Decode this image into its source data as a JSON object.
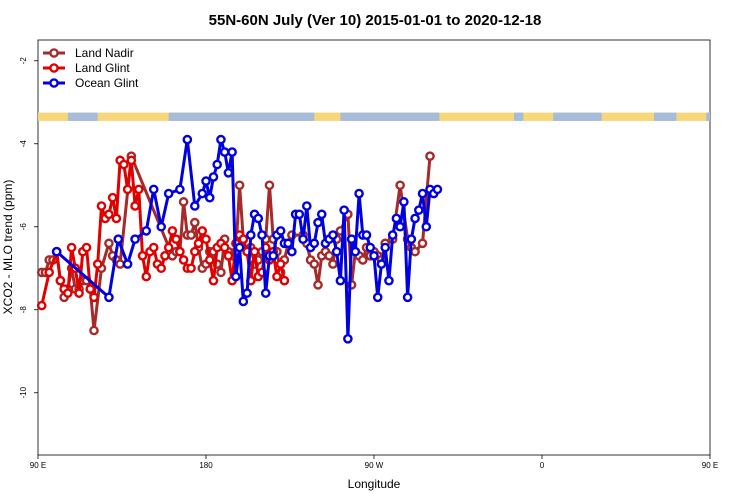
{
  "chart_data": {
    "type": "line",
    "title": "55N-60N July (Ver 10)   2015-01-01 to 2020-12-18",
    "xlabel": "Longitude",
    "ylabel": "XCO2 - MLO trend (ppm)",
    "xlim": [
      90,
      450
    ],
    "ylim": [
      -11.5,
      -1.5
    ],
    "x_ticks": [
      {
        "value": 90,
        "label": "90 E"
      },
      {
        "value": 180,
        "label": "180"
      },
      {
        "value": 270,
        "label": "90 W"
      },
      {
        "value": 360,
        "label": "0"
      },
      {
        "value": 450,
        "label": "90 E"
      },
      {
        "value": 540,
        "label": "180"
      }
    ],
    "y_ticks": [
      {
        "value": -2,
        "label": "-2"
      },
      {
        "value": -4,
        "label": "-4"
      },
      {
        "value": -6,
        "label": "-6"
      },
      {
        "value": -8,
        "label": "-8"
      },
      {
        "value": -10,
        "label": "-10"
      }
    ],
    "legend_position": "top-left",
    "land_mask_band": {
      "y_top": -3.25,
      "y_bottom": -3.45,
      "land_color": "#f7d77a",
      "ocean_color": "#a7bcd8"
    },
    "series": [
      {
        "name": "Land Nadir",
        "color": "#a52a2a",
        "x": [
          92,
          94,
          96,
          98,
          100,
          102,
          104,
          106,
          108,
          110,
          112,
          114,
          116,
          118,
          120,
          124,
          128,
          130,
          132,
          134,
          140,
          162,
          164,
          166,
          168,
          170,
          172,
          174,
          176,
          178,
          180,
          182,
          184,
          186,
          188,
          190,
          192,
          194,
          196,
          198,
          200,
          202,
          204,
          206,
          208,
          210,
          212,
          214,
          216,
          218,
          220,
          222,
          224,
          226,
          232,
          234,
          236,
          238,
          240,
          242,
          244,
          246,
          248,
          250,
          252,
          256,
          258,
          260,
          262,
          264,
          266,
          268,
          270,
          272,
          274,
          276,
          280,
          284,
          288,
          290,
          292,
          296,
          300
        ],
        "y": [
          -7.1,
          -7.1,
          -6.8,
          -6.8,
          -6.6,
          -7.3,
          -7.7,
          -7.5,
          -7.0,
          -7.5,
          -7.5,
          -7.3,
          -7.3,
          -7.5,
          -8.5,
          -7.0,
          -6.4,
          -6.7,
          -6.8,
          -6.9,
          -4.3,
          -6.7,
          -6.6,
          -6.6,
          -5.4,
          -6.2,
          -6.2,
          -5.9,
          -6.5,
          -7.0,
          -6.9,
          -6.6,
          -6.6,
          -6.9,
          -7.1,
          -6.3,
          -6.6,
          -6.7,
          -6.6,
          -5.0,
          -6.3,
          -6.6,
          -6.5,
          -6.9,
          -6.8,
          -6.6,
          -6.3,
          -5.0,
          -6.3,
          -6.6,
          -7.1,
          -6.8,
          -6.4,
          -6.2,
          -6.2,
          -6.4,
          -6.8,
          -6.9,
          -7.4,
          -6.7,
          -6.6,
          -6.7,
          -6.9,
          -6.3,
          -6.1,
          -5.7,
          -7.4,
          -6.6,
          -6.7,
          -6.8,
          -6.5,
          -6.7,
          -6.6,
          -6.7,
          -6.8,
          -6.4,
          -6.3,
          -5.0,
          -6.3,
          -6.5,
          -6.6,
          -6.4,
          -4.3
        ]
      },
      {
        "name": "Land Glint",
        "color": "#e00000",
        "x": [
          92,
          96,
          100,
          102,
          104,
          106,
          108,
          110,
          112,
          114,
          116,
          118,
          120,
          122,
          124,
          126,
          128,
          130,
          132,
          134,
          136,
          138,
          140,
          142,
          144,
          146,
          148,
          150,
          152,
          154,
          156,
          158,
          160,
          162,
          164,
          166,
          168,
          170,
          172,
          174,
          176,
          178,
          180,
          182,
          184,
          186,
          188,
          190,
          192,
          194,
          196,
          198,
          200,
          202,
          204,
          206,
          208,
          210,
          212,
          214,
          216,
          218,
          220,
          222
        ],
        "y": [
          -7.9,
          -7.1,
          -6.6,
          -7.3,
          -7.5,
          -7.6,
          -6.5,
          -7.0,
          -7.6,
          -6.6,
          -6.5,
          -7.5,
          -7.7,
          -6.9,
          -5.5,
          -5.8,
          -5.7,
          -5.3,
          -5.8,
          -4.4,
          -4.5,
          -5.1,
          -4.4,
          -5.5,
          -5.1,
          -6.7,
          -7.2,
          -6.6,
          -6.5,
          -6.9,
          -7.0,
          -6.7,
          -6.5,
          -6.1,
          -6.3,
          -6.6,
          -6.8,
          -7.0,
          -7.0,
          -6.6,
          -6.4,
          -6.1,
          -6.3,
          -6.8,
          -7.3,
          -6.5,
          -6.4,
          -6.5,
          -6.7,
          -7.3,
          -6.4,
          -6.2,
          -6.3,
          -6.6,
          -7.3,
          -6.6,
          -7.2,
          -7.1,
          -6.5,
          -6.8,
          -6.6,
          -7.2,
          -6.9,
          -7.3
        ]
      },
      {
        "name": "Ocean Glint",
        "color": "#0000e0",
        "x": [
          100,
          128,
          133,
          138,
          142,
          148,
          152,
          156,
          160,
          166,
          170,
          174,
          178,
          180,
          182,
          184,
          186,
          188,
          190,
          192,
          194,
          196,
          198,
          200,
          202,
          204,
          206,
          208,
          210,
          212,
          214,
          216,
          218,
          220,
          222,
          224,
          226,
          228,
          230,
          232,
          234,
          236,
          238,
          240,
          242,
          244,
          246,
          248,
          250,
          252,
          254,
          256,
          258,
          260,
          262,
          264,
          266,
          268,
          270,
          272,
          274,
          276,
          278,
          280,
          282,
          284,
          286,
          288,
          290,
          292,
          294,
          296,
          298,
          300,
          302,
          304
        ],
        "y": [
          -6.6,
          -7.7,
          -6.3,
          -6.9,
          -6.3,
          -6.1,
          -5.1,
          -6.0,
          -5.2,
          -5.1,
          -3.9,
          -5.5,
          -5.2,
          -4.9,
          -5.3,
          -4.8,
          -4.5,
          -3.9,
          -4.2,
          -4.7,
          -4.2,
          -7.2,
          -6.5,
          -7.8,
          -7.6,
          -6.2,
          -5.7,
          -5.8,
          -6.2,
          -7.6,
          -6.7,
          -6.7,
          -6.2,
          -6.1,
          -6.4,
          -6.4,
          -6.6,
          -5.7,
          -5.7,
          -6.3,
          -5.5,
          -6.5,
          -6.4,
          -5.9,
          -5.7,
          -6.4,
          -6.3,
          -6.2,
          -6.6,
          -7.3,
          -5.6,
          -8.7,
          -6.3,
          -6.6,
          -5.2,
          -6.2,
          -6.2,
          -6.5,
          -6.7,
          -7.7,
          -6.9,
          -6.5,
          -7.3,
          -6.2,
          -5.8,
          -6.0,
          -5.4,
          -7.7,
          -6.3,
          -5.8,
          -5.6,
          -5.2,
          -6.0,
          -5.1,
          -5.2,
          -5.1
        ]
      }
    ]
  }
}
